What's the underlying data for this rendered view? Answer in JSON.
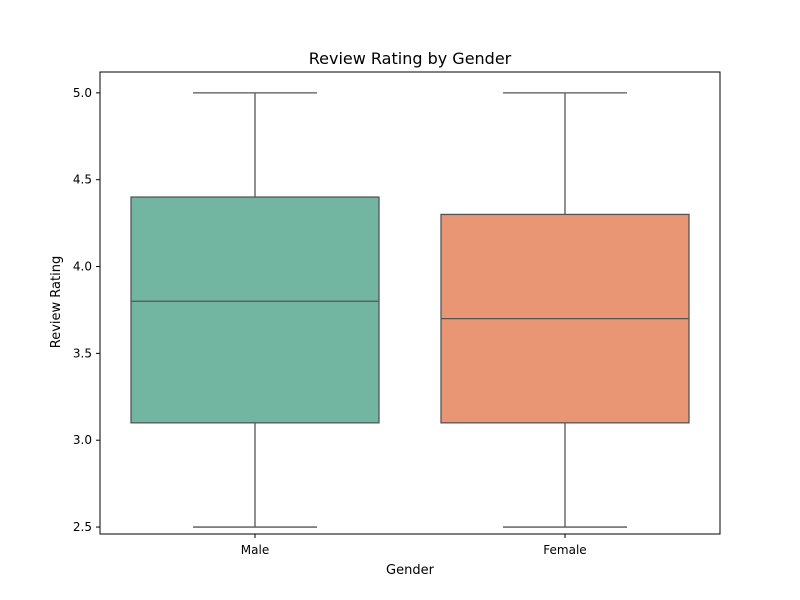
{
  "chart_data": {
    "type": "box",
    "title": "Review Rating by Gender",
    "xlabel": "Gender",
    "ylabel": "Review Rating",
    "categories": [
      "Male",
      "Female"
    ],
    "ylim": [
      2.46,
      5.12
    ],
    "yticks": [
      2.5,
      3.0,
      3.5,
      4.0,
      4.5,
      5.0
    ],
    "ytick_labels": [
      "2.5",
      "3.0",
      "3.5",
      "4.0",
      "4.5",
      "5.0"
    ],
    "grid": false,
    "series": [
      {
        "category": "Male",
        "min": 2.5,
        "q1": 3.1,
        "median": 3.8,
        "q3": 4.4,
        "max": 5.0,
        "color": "#72b6a1"
      },
      {
        "category": "Female",
        "min": 2.5,
        "q1": 3.1,
        "median": 3.7,
        "q3": 4.3,
        "max": 5.0,
        "color": "#e99675"
      }
    ],
    "line_color": "#555555",
    "frame_color": "#000000"
  }
}
